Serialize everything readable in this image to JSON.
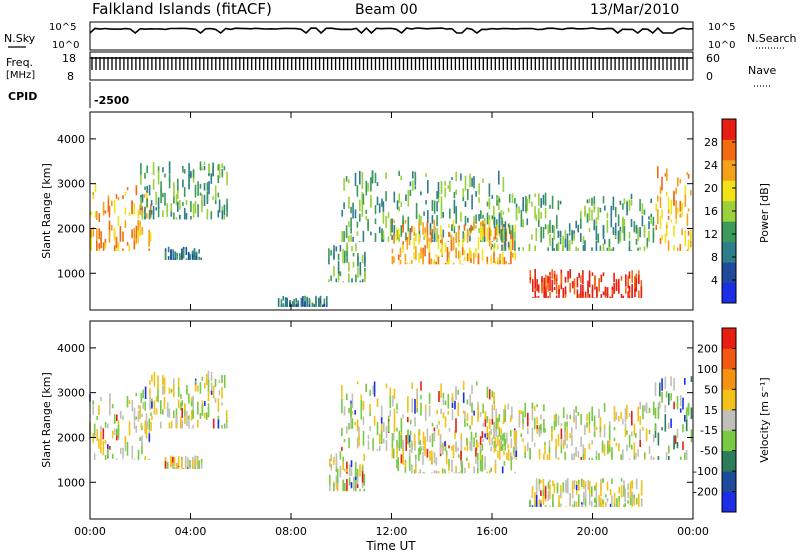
{
  "header": {
    "station": "Falkland Islands (fitACF)",
    "beam": "Beam 00",
    "date": "13/Mar/2010"
  },
  "aux_panels": {
    "nsky_label": "N.Sky",
    "nsky_ticks": [
      "10^5",
      "10^0"
    ],
    "nsearch_label": "N.Search",
    "freq_label_1": "Freq.",
    "freq_label_2": "[MHz]",
    "freq_ticks": [
      "18",
      "8"
    ],
    "nave_label": "Nave",
    "nave_ticks": [
      "60",
      "0"
    ],
    "cpid_label": "CPID",
    "cpid_value": "-2500"
  },
  "colors": {
    "power_scale": [
      "#1c2fe6",
      "#1e4a9c",
      "#2e7d8a",
      "#3a9a5a",
      "#9bd13a",
      "#f2e21a",
      "#f5a21a",
      "#f26a12",
      "#e81e12"
    ],
    "velocity_scale": [
      "#1c2fe6",
      "#1e4a9c",
      "#2e7d5a",
      "#7ac943",
      "#c8c8be",
      "#f2c21a",
      "#f59212",
      "#f25812",
      "#e81e12"
    ],
    "ground_scatter": "#c0c0b8"
  },
  "chart_data": [
    {
      "type": "heatmap",
      "name": "power-panel",
      "ylabel": "Slant Range [km]",
      "ylim": [
        180,
        4600
      ],
      "yticks": [
        "1000",
        "2000",
        "3000",
        "4000"
      ],
      "xlim": [
        0,
        24
      ],
      "xticks": [
        "00:00",
        "04:00",
        "08:00",
        "12:00",
        "16:00",
        "20:00",
        "00:00"
      ],
      "xlabel": "",
      "colorbar": {
        "label": "Power [dB]",
        "ticks": [
          "4",
          "8",
          "12",
          "16",
          "20",
          "24",
          "28"
        ]
      },
      "echo_regions": [
        {
          "t": [
            0.0,
            2.5
          ],
          "range": [
            1500,
            3000
          ],
          "level": 6
        },
        {
          "t": [
            2.0,
            5.5
          ],
          "range": [
            2200,
            3500
          ],
          "level": 3
        },
        {
          "t": [
            3.0,
            4.5
          ],
          "range": [
            1300,
            1600
          ],
          "level": 2
        },
        {
          "t": [
            7.5,
            9.5
          ],
          "range": [
            250,
            500
          ],
          "level": 2
        },
        {
          "t": [
            9.5,
            11.0
          ],
          "range": [
            800,
            1700
          ],
          "level": 3
        },
        {
          "t": [
            10.0,
            16.5
          ],
          "range": [
            1700,
            3300
          ],
          "level": 3
        },
        {
          "t": [
            12.0,
            17.0
          ],
          "range": [
            1200,
            2200
          ],
          "level": 6
        },
        {
          "t": [
            16.0,
            22.5
          ],
          "range": [
            1500,
            2800
          ],
          "level": 3
        },
        {
          "t": [
            17.5,
            22.0
          ],
          "range": [
            450,
            1100
          ],
          "level": 8
        },
        {
          "t": [
            22.5,
            24.0
          ],
          "range": [
            1500,
            3400
          ],
          "level": 6
        }
      ]
    },
    {
      "type": "heatmap",
      "name": "velocity-panel",
      "ylabel": "Slant Range [km]",
      "ylim": [
        180,
        4600
      ],
      "yticks": [
        "1000",
        "2000",
        "3000",
        "4000"
      ],
      "xlim": [
        0,
        24
      ],
      "xticks": [
        "00:00",
        "04:00",
        "08:00",
        "12:00",
        "16:00",
        "20:00",
        "00:00"
      ],
      "xlabel": "Time UT",
      "colorbar": {
        "label": "Velocity [m s⁻¹]",
        "ticks": [
          "200",
          "100",
          "50",
          "15",
          "-15",
          "-50",
          "-100",
          "-200"
        ]
      },
      "echo_regions": [
        {
          "t": [
            0.0,
            2.5
          ],
          "range": [
            1500,
            3000
          ],
          "level": 4
        },
        {
          "t": [
            2.0,
            5.5
          ],
          "range": [
            2200,
            3500
          ],
          "level": 4
        },
        {
          "t": [
            3.0,
            4.5
          ],
          "range": [
            1300,
            1600
          ],
          "level": 4
        },
        {
          "t": [
            9.5,
            11.0
          ],
          "range": [
            800,
            1700
          ],
          "level": 4
        },
        {
          "t": [
            10.0,
            16.5
          ],
          "range": [
            1700,
            3300
          ],
          "level": 4
        },
        {
          "t": [
            12.0,
            17.0
          ],
          "range": [
            1200,
            2200
          ],
          "level": 4
        },
        {
          "t": [
            16.0,
            22.5
          ],
          "range": [
            1500,
            2800
          ],
          "level": 4
        },
        {
          "t": [
            17.5,
            22.0
          ],
          "range": [
            450,
            1100
          ],
          "level": 4
        },
        {
          "t": [
            22.5,
            24.0
          ],
          "range": [
            1500,
            3400
          ],
          "level": 3
        }
      ]
    }
  ]
}
